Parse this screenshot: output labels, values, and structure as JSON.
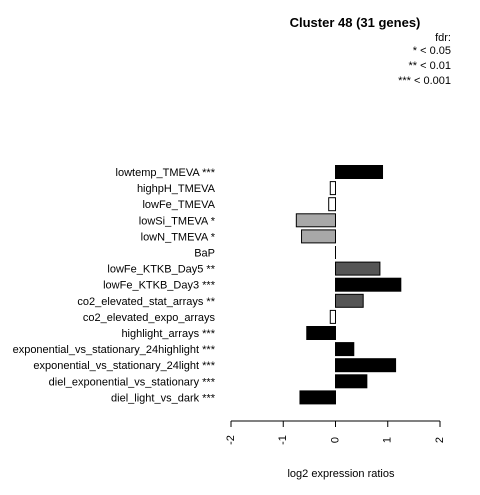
{
  "chart_data": {
    "type": "bar",
    "orientation": "horizontal",
    "title": "Cluster 48 (31 genes)",
    "xlabel": "log2 expression ratios",
    "ylabel": "",
    "xlim": [
      -2,
      2
    ],
    "xticks": [
      "-2",
      "-1",
      "0",
      "1",
      "2"
    ],
    "legend": {
      "position": "top-right",
      "lines": [
        "fdr:",
        "* < 0.05",
        "** < 0.01",
        "*** < 0.001"
      ]
    },
    "categories": [
      "lowtemp_TMEVA ***",
      "highpH_TMEVA",
      "lowFe_TMEVA",
      "lowSi_TMEVA *",
      "lowN_TMEVA *",
      "BaP",
      "lowFe_KTKB_Day5 **",
      "lowFe_KTKB_Day3 ***",
      "co2_elevated_stat_arrays **",
      "co2_elevated_expo_arrays",
      "highlight_arrays ***",
      "exponential_vs_stationary_24highlight ***",
      "exponential_vs_stationary_24light ***",
      "diel_exponential_vs_stationary ***",
      "diel_light_vs_dark ***"
    ],
    "values": [
      0.9,
      -0.1,
      -0.13,
      -0.75,
      -0.65,
      0.0,
      0.85,
      1.25,
      0.53,
      -0.1,
      -0.55,
      0.35,
      1.15,
      0.6,
      -0.68
    ],
    "colors": [
      "#000000",
      "#ffffff",
      "#ffffff",
      "#a8a8a8",
      "#a8a8a8",
      "#ffffff",
      "#555555",
      "#000000",
      "#555555",
      "#ffffff",
      "#000000",
      "#000000",
      "#000000",
      "#000000",
      "#000000"
    ]
  }
}
